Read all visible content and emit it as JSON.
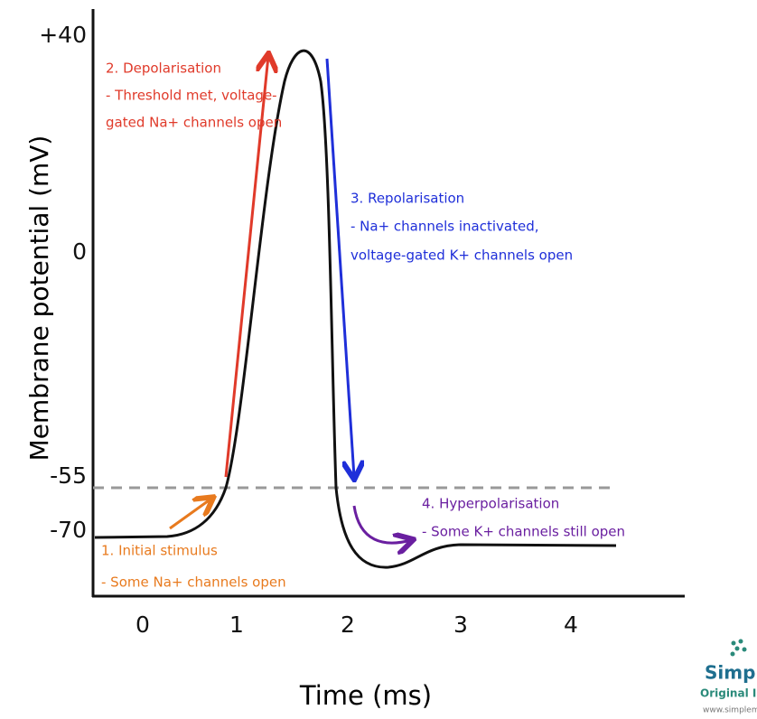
{
  "y_axis": {
    "label": "Membrane potential (mV)",
    "ticks": [
      "+40",
      "0",
      "-55",
      "-70"
    ]
  },
  "x_axis": {
    "label": "Time (ms)",
    "ticks": [
      "0",
      "1",
      "2",
      "3",
      "4"
    ]
  },
  "annotations": [
    {
      "title": "1. Initial stimulus",
      "lines": [
        "- Some Na+ channels open"
      ]
    },
    {
      "title": "2. Depolarisation",
      "lines": [
        "- Threshold met, voltage-",
        "gated Na+ channels open"
      ]
    },
    {
      "title": "3. Repolarisation",
      "lines": [
        "- Na+ channels inactivated,",
        "voltage-gated K+ channels open"
      ]
    },
    {
      "title": "4. Hyperpolarisation",
      "lines": [
        "- Some K+ channels still open"
      ]
    }
  ],
  "watermark": [
    "SimpleM",
    "Original Ima",
    "www.simplemed"
  ]
}
